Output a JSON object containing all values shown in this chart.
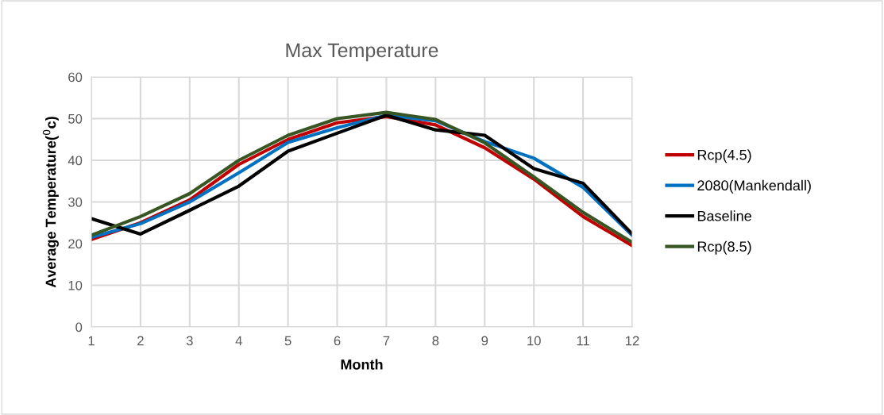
{
  "chart_data": {
    "type": "line",
    "title": "Max Temperature",
    "xlabel": "Month",
    "ylabel": "Average Temperature($^{0}$c)",
    "x": [
      1,
      2,
      3,
      4,
      5,
      6,
      7,
      8,
      9,
      10,
      11,
      12
    ],
    "xlim": [
      1,
      12
    ],
    "xticks": [
      1,
      2,
      3,
      4,
      5,
      6,
      7,
      8,
      9,
      10,
      11,
      12
    ],
    "ylim": [
      0,
      60
    ],
    "yticks": [
      0,
      10,
      20,
      30,
      40,
      50,
      60
    ],
    "grid": true,
    "legend": "right",
    "marker": "none",
    "line_style": "solid",
    "series": [
      {
        "name": "Rcp(4.5)",
        "color": "#c00000",
        "values": [
          21,
          25,
          30.5,
          39,
          45,
          49,
          50.5,
          48.5,
          43,
          35.5,
          26.5,
          19.5
        ]
      },
      {
        "name": "2080(Mankendall)",
        "color": "#0070c0",
        "values": [
          21.5,
          24.8,
          30,
          37,
          44.3,
          47.8,
          50.8,
          49.5,
          44.5,
          40.5,
          33.5,
          22
        ]
      },
      {
        "name": "Baseline",
        "color": "#000000",
        "values": [
          26,
          22.3,
          28,
          33.8,
          42.2,
          46.5,
          50.8,
          47.3,
          46,
          38,
          34.5,
          22.3
        ]
      },
      {
        "name": "Rcp(8.5)",
        "color": "#375623",
        "values": [
          22,
          26.5,
          32,
          40,
          46,
          50,
          51.5,
          49.8,
          44.2,
          36,
          27.5,
          20.3
        ]
      }
    ]
  }
}
